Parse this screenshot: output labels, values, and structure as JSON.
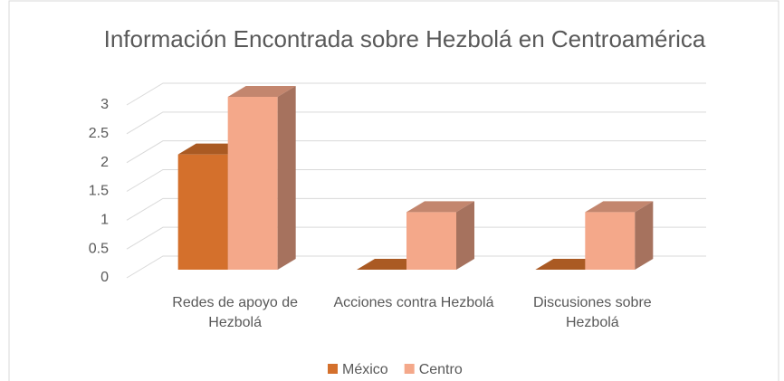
{
  "chart_data": {
    "type": "bar3d",
    "title": "Información Encontrada sobre Hezbolá en Centroamérica",
    "categories": [
      "Redes de apoyo de Hezbolá",
      "Acciones contra Hezbolá",
      "Discusiones sobre Hezbolá"
    ],
    "series": [
      {
        "name": "México",
        "color": "#d4702c",
        "values": [
          2,
          0,
          0
        ]
      },
      {
        "name": "Centro",
        "color": "#f4a88a",
        "values": [
          3,
          1,
          1
        ]
      }
    ],
    "ylim": [
      0,
      3
    ],
    "yticks": [
      0,
      0.5,
      1,
      1.5,
      2,
      2.5,
      3
    ],
    "grid": true,
    "legend": "bottom"
  }
}
